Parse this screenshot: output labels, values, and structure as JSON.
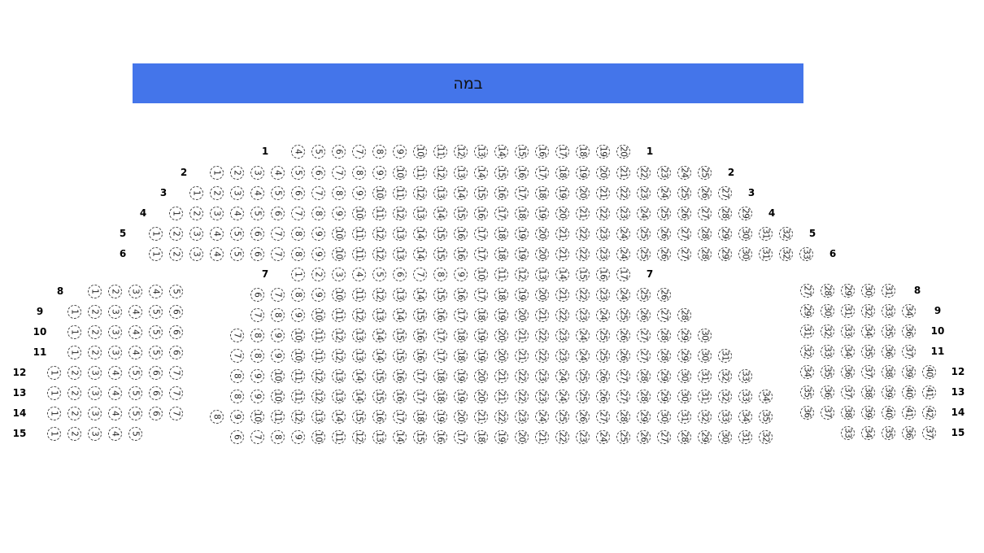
{
  "stage": {
    "label": "במה",
    "color": "#4475ea"
  },
  "seat_style": {
    "border": "dashed",
    "number_orientation": "rotated-90"
  },
  "sections": [
    {
      "name": "main-upper",
      "rows": [
        {
          "row": "1",
          "from": 4,
          "to": 20,
          "labels": [
            "left",
            "right"
          ]
        },
        {
          "row": "2",
          "from": 1,
          "to": 25,
          "labels": [
            "left",
            "right"
          ]
        },
        {
          "row": "3",
          "from": 1,
          "to": 27,
          "labels": [
            "left",
            "right"
          ]
        },
        {
          "row": "4",
          "from": 1,
          "to": 29,
          "labels": [
            "left",
            "right"
          ]
        },
        {
          "row": "5",
          "from": 1,
          "to": 32,
          "labels": [
            "left",
            "right"
          ]
        },
        {
          "row": "6",
          "from": 1,
          "to": 33,
          "labels": [
            "left",
            "right"
          ]
        },
        {
          "row": "7",
          "from": 1,
          "to": 17,
          "labels": [
            "left",
            "right"
          ]
        }
      ]
    },
    {
      "name": "left-wing",
      "rows": [
        {
          "row": "8",
          "from": 1,
          "to": 5,
          "labels": [
            "left"
          ]
        },
        {
          "row": "9",
          "from": 1,
          "to": 6,
          "labels": [
            "left"
          ]
        },
        {
          "row": "10",
          "from": 1,
          "to": 6,
          "labels": [
            "left"
          ]
        },
        {
          "row": "11",
          "from": 1,
          "to": 6,
          "labels": [
            "left"
          ]
        },
        {
          "row": "12",
          "from": 1,
          "to": 7,
          "labels": [
            "left"
          ]
        },
        {
          "row": "13",
          "from": 1,
          "to": 7,
          "labels": [
            "left"
          ]
        },
        {
          "row": "14",
          "from": 1,
          "to": 7,
          "labels": [
            "left"
          ]
        },
        {
          "row": "15",
          "from": 1,
          "to": 5,
          "labels": [
            "left"
          ]
        }
      ]
    },
    {
      "name": "center-lower",
      "rows": [
        {
          "row": "8",
          "from": 6,
          "to": 26,
          "labels": []
        },
        {
          "row": "9",
          "from": 7,
          "to": 28,
          "labels": []
        },
        {
          "row": "10",
          "from": 7,
          "to": 30,
          "labels": []
        },
        {
          "row": "11",
          "from": 7,
          "to": 31,
          "labels": []
        },
        {
          "row": "12",
          "from": 8,
          "to": 33,
          "labels": []
        },
        {
          "row": "13",
          "from": 8,
          "to": 34,
          "labels": []
        },
        {
          "row": "14",
          "from": 8,
          "to": 35,
          "labels": []
        },
        {
          "row": "15",
          "from": 6,
          "to": 32,
          "labels": []
        }
      ]
    },
    {
      "name": "right-wing",
      "rows": [
        {
          "row": "8",
          "from": 27,
          "to": 31,
          "labels": [
            "right"
          ]
        },
        {
          "row": "9",
          "from": 29,
          "to": 34,
          "labels": [
            "right"
          ]
        },
        {
          "row": "10",
          "from": 31,
          "to": 36,
          "labels": [
            "right"
          ]
        },
        {
          "row": "11",
          "from": 32,
          "to": 37,
          "labels": [
            "right"
          ]
        },
        {
          "row": "12",
          "from": 34,
          "to": 40,
          "labels": [
            "right"
          ]
        },
        {
          "row": "13",
          "from": 35,
          "to": 41,
          "labels": [
            "right"
          ]
        },
        {
          "row": "14",
          "from": 36,
          "to": 42,
          "labels": [
            "right"
          ]
        },
        {
          "row": "15",
          "from": 33,
          "to": 37,
          "labels": [
            "right"
          ]
        }
      ]
    }
  ]
}
